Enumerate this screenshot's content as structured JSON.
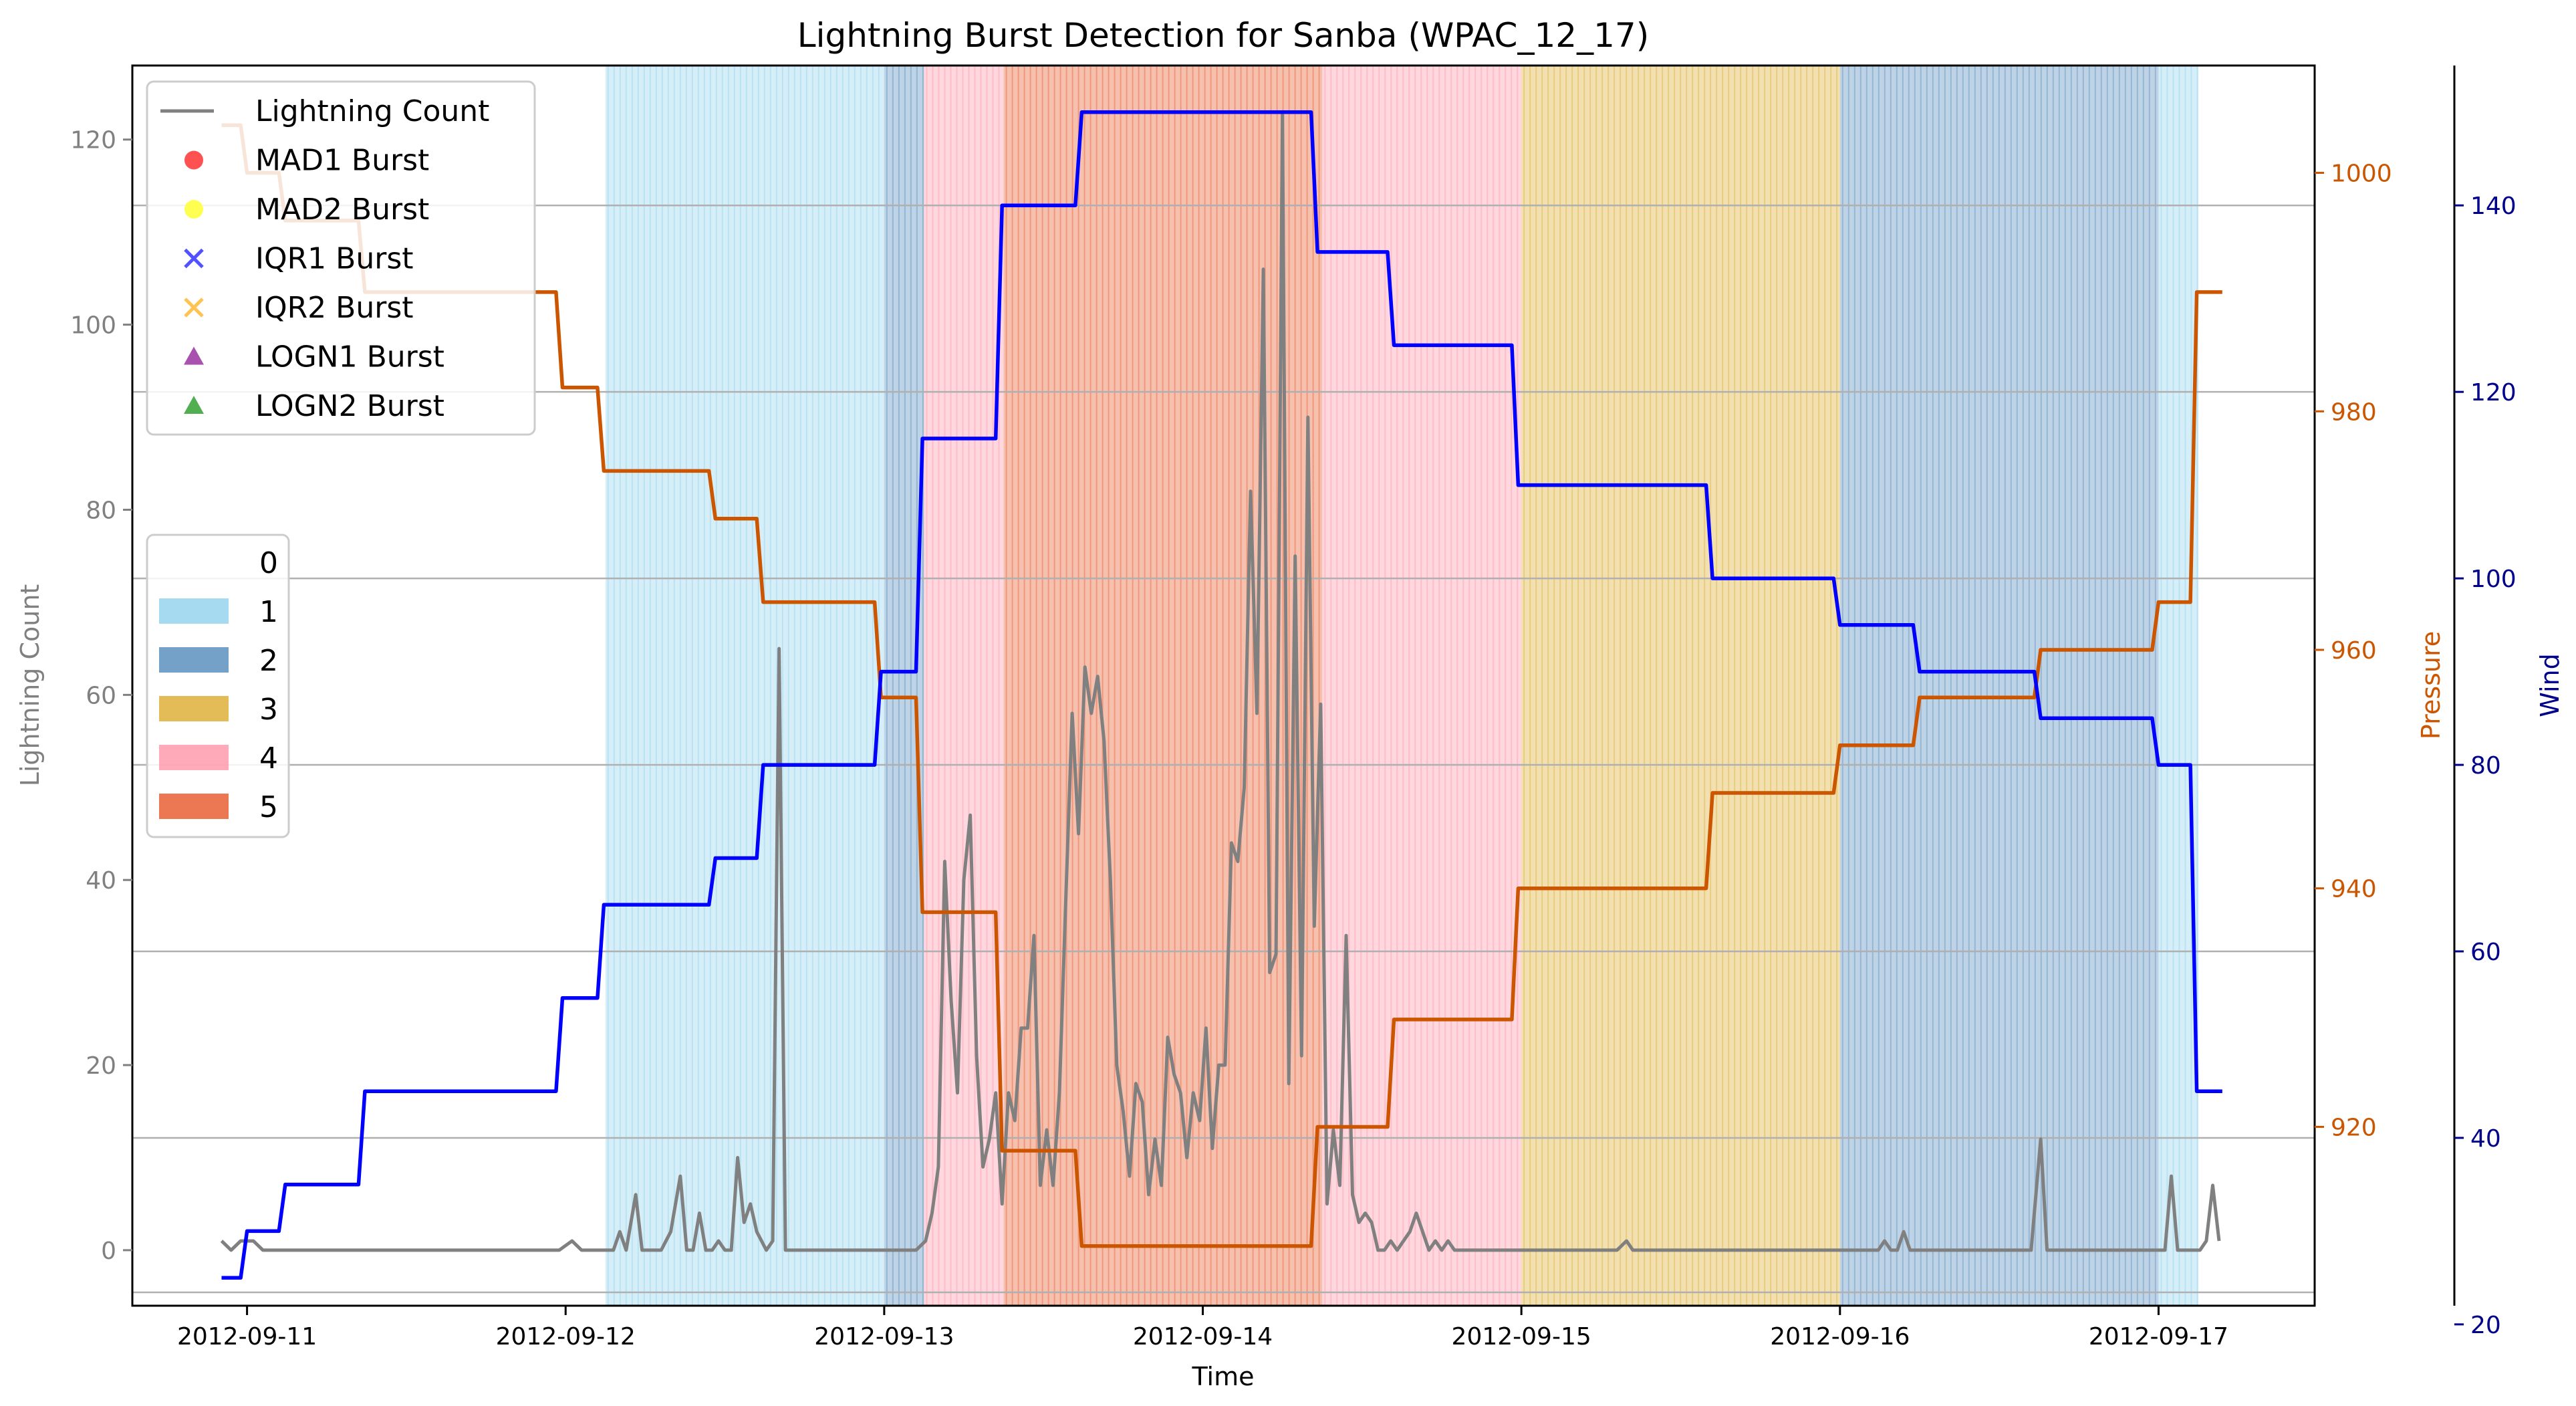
{
  "chart_data": {
    "type": "line",
    "title": "Lightning Burst Detection for Sanba (WPAC_12_17)",
    "xlabel": "Time",
    "x_ticks": [
      "2012-09-11",
      "2012-09-12",
      "2012-09-13",
      "2012-09-14",
      "2012-09-15",
      "2012-09-16",
      "2012-09-17"
    ],
    "x_range_days": [
      10.64,
      17.49
    ],
    "axes": {
      "left": {
        "label": "Lightning Count",
        "color": "#808080",
        "ylim": [
          -6,
          128
        ],
        "ticks": [
          "0",
          "20",
          "40",
          "60",
          "80",
          "100",
          "120"
        ],
        "tick_values": [
          0,
          20,
          40,
          60,
          80,
          100,
          120
        ]
      },
      "pressure": {
        "label": "Pressure",
        "color": "#cc5500",
        "ylim": [
          905,
          1009
        ],
        "ticks": [
          "920",
          "940",
          "960",
          "980",
          "1000"
        ],
        "tick_values": [
          920,
          940,
          960,
          980,
          1000
        ]
      },
      "wind": {
        "label": "Wind",
        "color": "#00008b",
        "ylim": [
          22,
          155
        ],
        "ticks": [
          "20",
          "40",
          "60",
          "80",
          "100",
          "120",
          "140"
        ],
        "tick_values": [
          20,
          40,
          60,
          80,
          100,
          120,
          140
        ]
      }
    },
    "category_bands": [
      {
        "cat": "1",
        "start": 12.125,
        "end": 13.0
      },
      {
        "cat": "2",
        "start": 13.0,
        "end": 13.125
      },
      {
        "cat": "4",
        "start": 13.125,
        "end": 13.375
      },
      {
        "cat": "5",
        "start": 13.375,
        "end": 14.375
      },
      {
        "cat": "4",
        "start": 14.375,
        "end": 15.0
      },
      {
        "cat": "3",
        "start": 15.0,
        "end": 16.0
      },
      {
        "cat": "2",
        "start": 16.0,
        "end": 17.0
      },
      {
        "cat": "1",
        "start": 17.0,
        "end": 17.125
      }
    ],
    "category_colors": {
      "1": "#87ceeb",
      "2": "#4682b4",
      "3": "#daa520",
      "4": "#ff8da1",
      "5": "#e64a19"
    },
    "series": [
      {
        "name": "Lightning Count",
        "color": "#808080",
        "axis": "left",
        "points": [
          [
            10.92,
            1
          ],
          [
            10.95,
            0
          ],
          [
            10.98,
            1
          ],
          [
            11.02,
            1
          ],
          [
            11.05,
            0
          ],
          [
            11.5,
            0
          ],
          [
            11.98,
            0
          ],
          [
            12.02,
            1
          ],
          [
            12.05,
            0
          ],
          [
            12.15,
            0
          ],
          [
            12.17,
            2
          ],
          [
            12.19,
            0
          ],
          [
            12.22,
            6
          ],
          [
            12.24,
            0
          ],
          [
            12.3,
            0
          ],
          [
            12.33,
            2
          ],
          [
            12.36,
            8
          ],
          [
            12.38,
            0
          ],
          [
            12.4,
            0
          ],
          [
            12.42,
            4
          ],
          [
            12.44,
            0
          ],
          [
            12.46,
            0
          ],
          [
            12.48,
            1
          ],
          [
            12.5,
            0
          ],
          [
            12.52,
            0
          ],
          [
            12.54,
            10
          ],
          [
            12.56,
            3
          ],
          [
            12.58,
            5
          ],
          [
            12.6,
            2
          ],
          [
            12.63,
            0
          ],
          [
            12.65,
            1
          ],
          [
            12.67,
            65
          ],
          [
            12.69,
            0
          ],
          [
            12.8,
            0
          ],
          [
            13.0,
            0
          ],
          [
            13.1,
            0
          ],
          [
            13.13,
            1
          ],
          [
            13.15,
            4
          ],
          [
            13.17,
            9
          ],
          [
            13.19,
            42
          ],
          [
            13.21,
            27
          ],
          [
            13.23,
            17
          ],
          [
            13.25,
            40
          ],
          [
            13.27,
            47
          ],
          [
            13.29,
            21
          ],
          [
            13.31,
            9
          ],
          [
            13.33,
            12
          ],
          [
            13.35,
            17
          ],
          [
            13.37,
            5
          ],
          [
            13.39,
            17
          ],
          [
            13.41,
            14
          ],
          [
            13.43,
            24
          ],
          [
            13.45,
            24
          ],
          [
            13.47,
            34
          ],
          [
            13.49,
            7
          ],
          [
            13.51,
            13
          ],
          [
            13.53,
            7
          ],
          [
            13.55,
            17
          ],
          [
            13.57,
            38
          ],
          [
            13.59,
            58
          ],
          [
            13.61,
            45
          ],
          [
            13.63,
            63
          ],
          [
            13.65,
            58
          ],
          [
            13.67,
            62
          ],
          [
            13.69,
            55
          ],
          [
            13.71,
            40
          ],
          [
            13.73,
            20
          ],
          [
            13.75,
            15
          ],
          [
            13.77,
            8
          ],
          [
            13.79,
            18
          ],
          [
            13.81,
            16
          ],
          [
            13.83,
            6
          ],
          [
            13.85,
            12
          ],
          [
            13.87,
            7
          ],
          [
            13.89,
            23
          ],
          [
            13.91,
            19
          ],
          [
            13.93,
            17
          ],
          [
            13.95,
            10
          ],
          [
            13.97,
            17
          ],
          [
            13.99,
            14
          ],
          [
            14.01,
            24
          ],
          [
            14.03,
            11
          ],
          [
            14.05,
            20
          ],
          [
            14.07,
            20
          ],
          [
            14.09,
            44
          ],
          [
            14.11,
            42
          ],
          [
            14.13,
            50
          ],
          [
            14.15,
            82
          ],
          [
            14.17,
            58
          ],
          [
            14.19,
            106
          ],
          [
            14.21,
            30
          ],
          [
            14.23,
            32
          ],
          [
            14.25,
            123
          ],
          [
            14.27,
            18
          ],
          [
            14.29,
            75
          ],
          [
            14.31,
            21
          ],
          [
            14.33,
            90
          ],
          [
            14.35,
            35
          ],
          [
            14.37,
            59
          ],
          [
            14.39,
            5
          ],
          [
            14.41,
            13
          ],
          [
            14.43,
            7
          ],
          [
            14.45,
            34
          ],
          [
            14.47,
            6
          ],
          [
            14.49,
            3
          ],
          [
            14.51,
            4
          ],
          [
            14.53,
            3
          ],
          [
            14.55,
            0
          ],
          [
            14.57,
            0
          ],
          [
            14.59,
            1
          ],
          [
            14.61,
            0
          ],
          [
            14.63,
            1
          ],
          [
            14.65,
            2
          ],
          [
            14.67,
            4
          ],
          [
            14.69,
            2
          ],
          [
            14.71,
            0
          ],
          [
            14.73,
            1
          ],
          [
            14.75,
            0
          ],
          [
            14.77,
            1
          ],
          [
            14.79,
            0
          ],
          [
            15.0,
            0
          ],
          [
            15.3,
            0
          ],
          [
            15.33,
            1
          ],
          [
            15.35,
            0
          ],
          [
            15.9,
            0
          ],
          [
            16.12,
            0
          ],
          [
            16.14,
            1
          ],
          [
            16.16,
            0
          ],
          [
            16.18,
            0
          ],
          [
            16.2,
            2
          ],
          [
            16.22,
            0
          ],
          [
            16.6,
            0
          ],
          [
            16.63,
            12
          ],
          [
            16.65,
            0
          ],
          [
            17.02,
            0
          ],
          [
            17.04,
            8
          ],
          [
            17.06,
            0
          ],
          [
            17.13,
            0
          ],
          [
            17.15,
            1
          ],
          [
            17.17,
            7
          ],
          [
            17.19,
            1
          ]
        ]
      },
      {
        "name": "Pressure",
        "color": "#cc5500",
        "axis": "pressure",
        "points": [
          [
            10.92,
            1004
          ],
          [
            10.98,
            1004
          ],
          [
            11.0,
            1000
          ],
          [
            11.1,
            1000
          ],
          [
            11.12,
            996
          ],
          [
            11.35,
            996
          ],
          [
            11.37,
            990
          ],
          [
            11.97,
            990
          ],
          [
            11.99,
            982
          ],
          [
            12.1,
            982
          ],
          [
            12.12,
            975
          ],
          [
            12.45,
            975
          ],
          [
            12.47,
            971
          ],
          [
            12.6,
            971
          ],
          [
            12.62,
            964
          ],
          [
            12.97,
            964
          ],
          [
            12.99,
            956
          ],
          [
            13.1,
            956
          ],
          [
            13.12,
            938
          ],
          [
            13.35,
            938
          ],
          [
            13.37,
            918
          ],
          [
            13.6,
            918
          ],
          [
            13.62,
            910
          ],
          [
            14.34,
            910
          ],
          [
            14.36,
            920
          ],
          [
            14.58,
            920
          ],
          [
            14.6,
            929
          ],
          [
            14.97,
            929
          ],
          [
            14.99,
            940
          ],
          [
            15.58,
            940
          ],
          [
            15.6,
            948
          ],
          [
            15.98,
            948
          ],
          [
            16.0,
            952
          ],
          [
            16.23,
            952
          ],
          [
            16.25,
            956
          ],
          [
            16.61,
            956
          ],
          [
            16.63,
            960
          ],
          [
            16.98,
            960
          ],
          [
            17.0,
            964
          ],
          [
            17.1,
            964
          ],
          [
            17.12,
            990
          ],
          [
            17.2,
            990
          ]
        ]
      },
      {
        "name": "Wind",
        "color": "#0000ff",
        "axis": "wind",
        "points": [
          [
            10.92,
            25
          ],
          [
            10.98,
            25
          ],
          [
            11.0,
            30
          ],
          [
            11.1,
            30
          ],
          [
            11.12,
            35
          ],
          [
            11.35,
            35
          ],
          [
            11.37,
            45
          ],
          [
            11.97,
            45
          ],
          [
            11.99,
            55
          ],
          [
            12.1,
            55
          ],
          [
            12.12,
            65
          ],
          [
            12.45,
            65
          ],
          [
            12.47,
            70
          ],
          [
            12.6,
            70
          ],
          [
            12.62,
            80
          ],
          [
            12.97,
            80
          ],
          [
            12.99,
            90
          ],
          [
            13.1,
            90
          ],
          [
            13.12,
            115
          ],
          [
            13.35,
            115
          ],
          [
            13.37,
            140
          ],
          [
            13.6,
            140
          ],
          [
            13.62,
            150
          ],
          [
            14.34,
            150
          ],
          [
            14.36,
            135
          ],
          [
            14.58,
            135
          ],
          [
            14.6,
            125
          ],
          [
            14.97,
            125
          ],
          [
            14.99,
            110
          ],
          [
            15.58,
            110
          ],
          [
            15.6,
            100
          ],
          [
            15.98,
            100
          ],
          [
            16.0,
            95
          ],
          [
            16.23,
            95
          ],
          [
            16.25,
            90
          ],
          [
            16.61,
            90
          ],
          [
            16.63,
            85
          ],
          [
            16.98,
            85
          ],
          [
            17.0,
            80
          ],
          [
            17.1,
            80
          ],
          [
            17.12,
            45
          ],
          [
            17.2,
            45
          ]
        ]
      }
    ],
    "burst_legend": [
      {
        "label": "MAD1 Burst",
        "marker": "circle",
        "color": "#ff3333"
      },
      {
        "label": "MAD2 Burst",
        "marker": "circle",
        "color": "#ffff33"
      },
      {
        "label": "IQR1 Burst",
        "marker": "x",
        "color": "#3333ff"
      },
      {
        "label": "IQR2 Burst",
        "marker": "x",
        "color": "#ffb833"
      },
      {
        "label": "LOGN1 Burst",
        "marker": "triangle",
        "color": "#9932a0"
      },
      {
        "label": "LOGN2 Burst",
        "marker": "triangle",
        "color": "#33a033"
      }
    ],
    "category_legend": [
      {
        "label": "0",
        "color": ""
      },
      {
        "label": "1",
        "color": "#87ceeb"
      },
      {
        "label": "2",
        "color": "#4682b4"
      },
      {
        "label": "3",
        "color": "#daa520"
      },
      {
        "label": "4",
        "color": "#ff8da1"
      },
      {
        "label": "5",
        "color": "#e64a19"
      }
    ],
    "grid": "horizontal on wind axis",
    "legend_placement": "top-left and middle-left"
  }
}
